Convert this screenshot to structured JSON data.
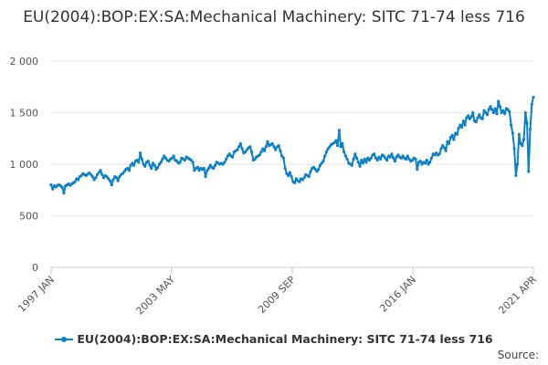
{
  "chart_data": {
    "type": "line",
    "title": "EU(2004):BOP:EX:SA:Mechanical Machinery: SITC 71-74 less 716",
    "xlabel": "",
    "ylabel": "",
    "ylim": [
      0,
      2000
    ],
    "yticks": [
      "0",
      "500",
      "1 000",
      "1 500",
      "2 000"
    ],
    "ytick_values": [
      0,
      500,
      1000,
      1500,
      2000
    ],
    "xticks": [
      "1997 JAN",
      "2003 MAY",
      "2009 SEP",
      "2016 JAN",
      "2021 APR"
    ],
    "grid": true,
    "legend_position": "bottom",
    "color": "#0c80c4",
    "series": [
      {
        "name": "EU(2004):BOP:EX:SA:Mechanical Machinery: SITC 71-74 less 716",
        "x_start": "1997 JAN",
        "frequency": "monthly",
        "values": [
          800,
          760,
          790,
          780,
          795,
          800,
          790,
          775,
          720,
          790,
          800,
          810,
          795,
          810,
          820,
          830,
          860,
          850,
          880,
          890,
          910,
          900,
          890,
          905,
          915,
          900,
          880,
          850,
          870,
          900,
          920,
          940,
          900,
          870,
          890,
          880,
          860,
          840,
          800,
          850,
          880,
          870,
          840,
          880,
          900,
          910,
          930,
          950,
          960,
          940,
          990,
          1010,
          990,
          1030,
          1040,
          1020,
          1110,
          1050,
          1000,
          980,
          1020,
          1030,
          990,
          960,
          1010,
          990,
          950,
          970,
          1000,
          1020,
          1050,
          1080,
          1060,
          1040,
          1030,
          1050,
          1060,
          1080,
          1040,
          1030,
          1010,
          1020,
          1060,
          1050,
          1040,
          1070,
          1060,
          1050,
          1040,
          1020,
          940,
          960,
          970,
          940,
          960,
          950,
          960,
          880,
          940,
          960,
          990,
          970,
          960,
          990,
          1020,
          1010,
          1000,
          1010,
          1000,
          1020,
          1050,
          1080,
          1100,
          1080,
          1070,
          1120,
          1130,
          1140,
          1170,
          1200,
          1150,
          1110,
          1120,
          1140,
          1160,
          1170,
          1120,
          1040,
          1050,
          1070,
          1080,
          1090,
          1120,
          1150,
          1130,
          1170,
          1220,
          1180,
          1190,
          1200,
          1170,
          1140,
          1170,
          1180,
          1130,
          1080,
          1060,
          960,
          910,
          890,
          920,
          880,
          830,
          820,
          860,
          840,
          830,
          860,
          850,
          870,
          900,
          890,
          880,
          930,
          960,
          970,
          950,
          930,
          950,
          990,
          1010,
          1030,
          1080,
          1120,
          1150,
          1170,
          1190,
          1200,
          1210,
          1230,
          1180,
          1330,
          1170,
          1200,
          1120,
          1080,
          1050,
          1010,
          1000,
          990,
          1050,
          1100,
          1060,
          1020,
          980,
          1040,
          1010,
          1050,
          1020,
          1060,
          1040,
          1060,
          1090,
          1100,
          1060,
          1040,
          1070,
          1050,
          1090,
          1080,
          1060,
          1040,
          1080,
          1070,
          1100,
          1060,
          1030,
          1070,
          1090,
          1070,
          1060,
          1080,
          1060,
          1050,
          1080,
          1050,
          1030,
          1040,
          1060,
          1050,
          950,
          1020,
          1030,
          1000,
          1020,
          1010,
          1040,
          1000,
          1020,
          1060,
          1100,
          1090,
          1110,
          1090,
          1100,
          1150,
          1180,
          1160,
          1130,
          1220,
          1200,
          1260,
          1280,
          1240,
          1300,
          1290,
          1350,
          1380,
          1360,
          1420,
          1380,
          1450,
          1470,
          1440,
          1460,
          1500,
          1420,
          1410,
          1450,
          1480,
          1450,
          1440,
          1520,
          1500,
          1480,
          1530,
          1560,
          1530,
          1500,
          1540,
          1490,
          1610,
          1560,
          1500,
          1520,
          1490,
          1540,
          1530,
          1510,
          1380,
          1300,
          1150,
          890,
          1000,
          1290,
          1200,
          1180,
          1240,
          1500,
          1400,
          930,
          1340,
          1580,
          1650
        ]
      }
    ]
  },
  "source_label": "Source:"
}
